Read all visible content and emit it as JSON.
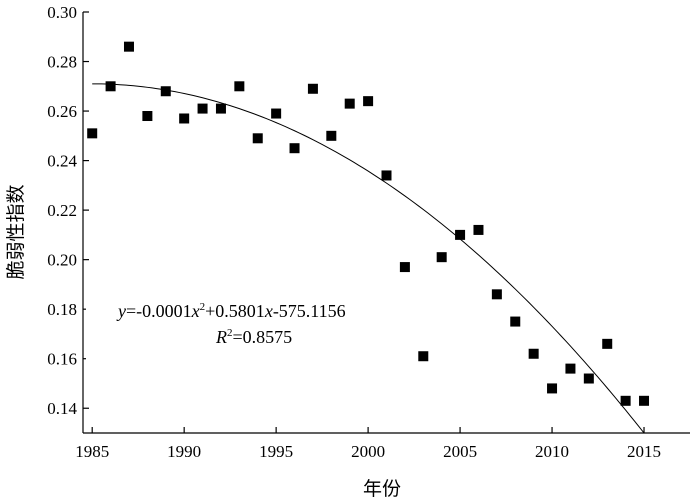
{
  "chart_data": {
    "type": "scatter",
    "title": "",
    "xlabel": "年份",
    "ylabel": "脆弱性指数",
    "xlim": [
      1984.5,
      2017.5
    ],
    "ylim": [
      0.13,
      0.3
    ],
    "xticks": [
      1985,
      1990,
      1995,
      2000,
      2005,
      2010,
      2015
    ],
    "yticks": [
      0.14,
      0.16,
      0.18,
      0.2,
      0.22,
      0.24,
      0.26,
      0.28,
      0.3
    ],
    "x_tick_labels": [
      "1985",
      "1990",
      "1995",
      "2000",
      "2005",
      "2010",
      "2015"
    ],
    "y_tick_labels": [
      "0.14",
      "0.16",
      "0.18",
      "0.20",
      "0.22",
      "0.24",
      "0.26",
      "0.28",
      "0.30"
    ],
    "grid": false,
    "series": [
      {
        "marker": "square",
        "x": [
          1985,
          1986,
          1987,
          1988,
          1989,
          1990,
          1991,
          1992,
          1993,
          1994,
          1995,
          1996,
          1997,
          1998,
          1999,
          2000,
          2001,
          2002,
          2003,
          2004,
          2005,
          2006,
          2007,
          2008,
          2009,
          2010,
          2011,
          2012,
          2013,
          2014,
          2015
        ],
        "y": [
          0.251,
          0.27,
          0.286,
          0.258,
          0.268,
          0.257,
          0.261,
          0.261,
          0.27,
          0.249,
          0.259,
          0.245,
          0.269,
          0.25,
          0.263,
          0.264,
          0.234,
          0.197,
          0.161,
          0.201,
          0.21,
          0.212,
          0.186,
          0.175,
          0.162,
          0.148,
          0.156,
          0.152,
          0.166,
          0.143,
          0.143
        ]
      }
    ],
    "trendline": {
      "type": "quadratic",
      "x_range": [
        1985,
        2015
      ],
      "y_at_start": 0.271,
      "y_at_end": 0.13
    },
    "annotation": {
      "eq_prefix": "y",
      "eq_mid1": "=-0.0001",
      "eq_x1": "x",
      "eq_sup": "2",
      "eq_mid2": "+0.5801",
      "eq_x2": "x",
      "eq_tail": "-575.1156",
      "r_label": "R",
      "r_sup": "2",
      "r_value": "=0.8575"
    }
  }
}
